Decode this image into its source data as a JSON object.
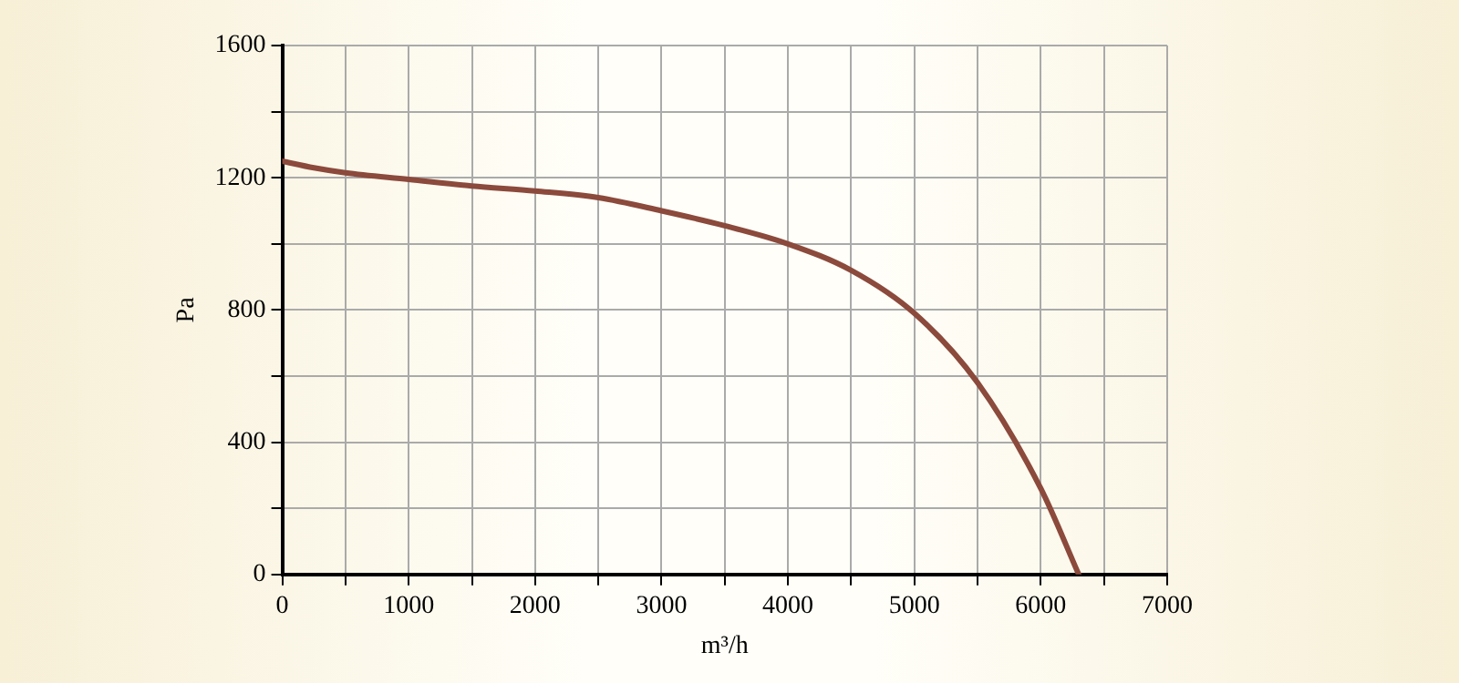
{
  "chart_data": {
    "type": "line",
    "xlabel": "m³/h",
    "ylabel": "Pa",
    "x": [
      0,
      250,
      500,
      1000,
      1500,
      2000,
      2500,
      3000,
      3500,
      4000,
      4500,
      5000,
      5500,
      6000,
      6300
    ],
    "series": [
      {
        "color": "#8b4a3c",
        "values": [
          1250,
          1230,
          1215,
          1195,
          1175,
          1160,
          1140,
          1100,
          1055,
          1000,
          920,
          790,
          580,
          260,
          0
        ]
      }
    ],
    "xlim": [
      0,
      7000
    ],
    "xticks": [
      0,
      {
        "value": 500,
        "label": null
      },
      1000,
      {
        "value": 1500,
        "label": null
      },
      2000,
      {
        "value": 2500,
        "label": null
      },
      3000,
      {
        "value": 3500,
        "label": null
      },
      4000,
      {
        "value": 4500,
        "label": null
      },
      5000,
      {
        "value": 5500,
        "label": null
      },
      6000,
      {
        "value": 6500,
        "label": null
      },
      7000
    ],
    "ylim": [
      0,
      1600
    ],
    "yticks": [
      0,
      {
        "value": 200,
        "label": null
      },
      400,
      {
        "value": 600,
        "label": null
      },
      800,
      {
        "value": 1000,
        "label": null
      },
      1200,
      {
        "value": 1400,
        "label": null
      },
      1600
    ],
    "grid": true,
    "legend": false,
    "marker": "none",
    "line_style": "solid"
  }
}
